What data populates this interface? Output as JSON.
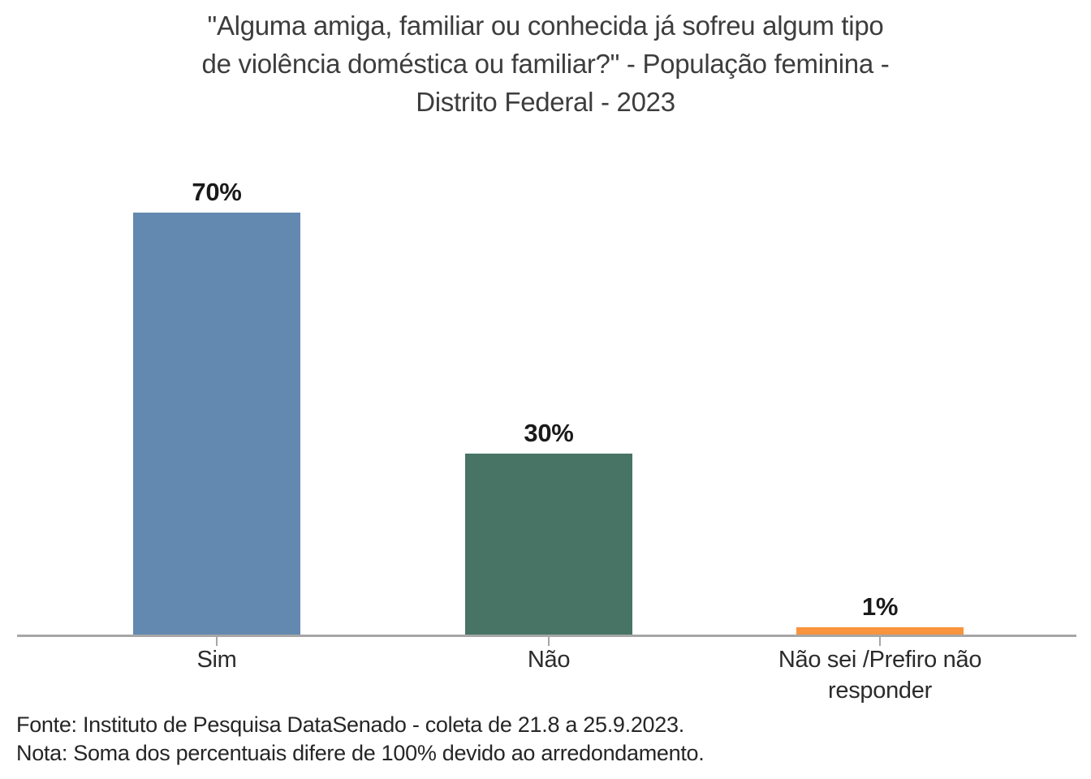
{
  "chart_data": {
    "type": "bar",
    "title": "\"Alguma amiga, familiar ou conhecida já sofreu algum tipo de violência doméstica ou familiar?\" - População feminina - Distrito Federal - 2023",
    "title_lines": [
      "\"Alguma amiga, familiar ou conhecida já sofreu algum tipo",
      "de violência doméstica ou familiar?\" - População feminina -",
      "Distrito Federal - 2023"
    ],
    "categories": [
      "Sim",
      "Não",
      "Não sei /Prefiro não responder"
    ],
    "values": [
      70,
      30,
      1
    ],
    "value_labels": [
      "70%",
      "30%",
      "1%"
    ],
    "bar_colors": [
      "#6489b0",
      "#477465",
      "#f8943d"
    ],
    "axis_color": "#a6a6a6",
    "xlabel": "",
    "ylabel": "",
    "ylim": [
      0,
      75
    ],
    "grid": false,
    "legend": false
  },
  "footer": {
    "lines": [
      "Fonte: Instituto de Pesquisa DataSenado - coleta de 21.8 a 25.9.2023.",
      "Nota: Soma dos percentuais difere de 100% devido ao arredondamento."
    ]
  }
}
